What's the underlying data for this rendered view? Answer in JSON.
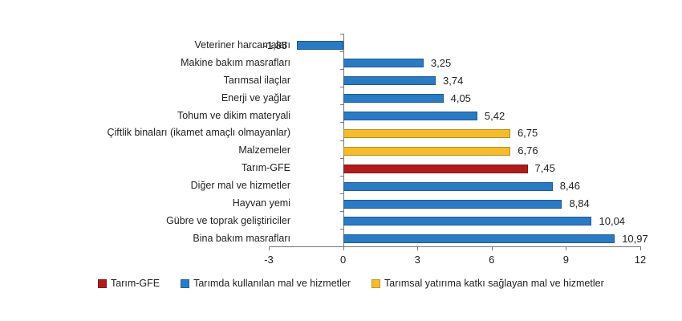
{
  "chart_data": {
    "type": "bar",
    "orientation": "horizontal",
    "title": "",
    "xlabel": "",
    "ylabel": "",
    "xlim": [
      -3,
      12
    ],
    "xticks": [
      -3,
      0,
      3,
      6,
      9,
      12
    ],
    "grid": false,
    "legend_position": "bottom",
    "categories": [
      "Veteriner harcamaları",
      "Makine bakım masrafları",
      "Tarımsal ilaçlar",
      "Enerji ve yağlar",
      "Tohum ve dikim materyali",
      "Çiftlik binaları (ikamet amaçlı olmayanlar)",
      "Malzemeler",
      "Tarım-GFE",
      "Diğer mal ve hizmetler",
      "Hayvan yemi",
      "Gübre ve toprak geliştiriciler",
      "Bina bakım masrafları"
    ],
    "values": [
      -1.85,
      3.25,
      3.74,
      4.05,
      5.42,
      6.75,
      6.76,
      7.45,
      8.46,
      8.84,
      10.04,
      10.97
    ],
    "value_labels": [
      "-1,85",
      "3,25",
      "3,74",
      "4,05",
      "5,42",
      "6,75",
      "6,76",
      "7,45",
      "8,46",
      "8,84",
      "10,04",
      "10,97"
    ],
    "series_of_bar": [
      1,
      1,
      1,
      1,
      1,
      2,
      2,
      0,
      1,
      1,
      1,
      1
    ],
    "series": [
      {
        "name": "Tarım-GFE",
        "color": "#b01c1c"
      },
      {
        "name": "Tarımda kullanılan mal ve hizmetler",
        "color": "#2a7ac4"
      },
      {
        "name": "Tarımsal yatırıma katkı sağlayan mal ve hizmetler",
        "color": "#f5bc2c"
      }
    ]
  },
  "axis": {
    "tick_labels": [
      "-3",
      "0",
      "3",
      "6",
      "9",
      "12"
    ]
  },
  "legend": {
    "items": [
      {
        "label": "Tarım-GFE",
        "color": "#b01c1c"
      },
      {
        "label": "Tarımda kullanılan mal ve hizmetler",
        "color": "#2a7ac4"
      },
      {
        "label": "Tarımsal yatırıma katkı sağlayan mal ve hizmetler",
        "color": "#f5bc2c"
      }
    ]
  }
}
